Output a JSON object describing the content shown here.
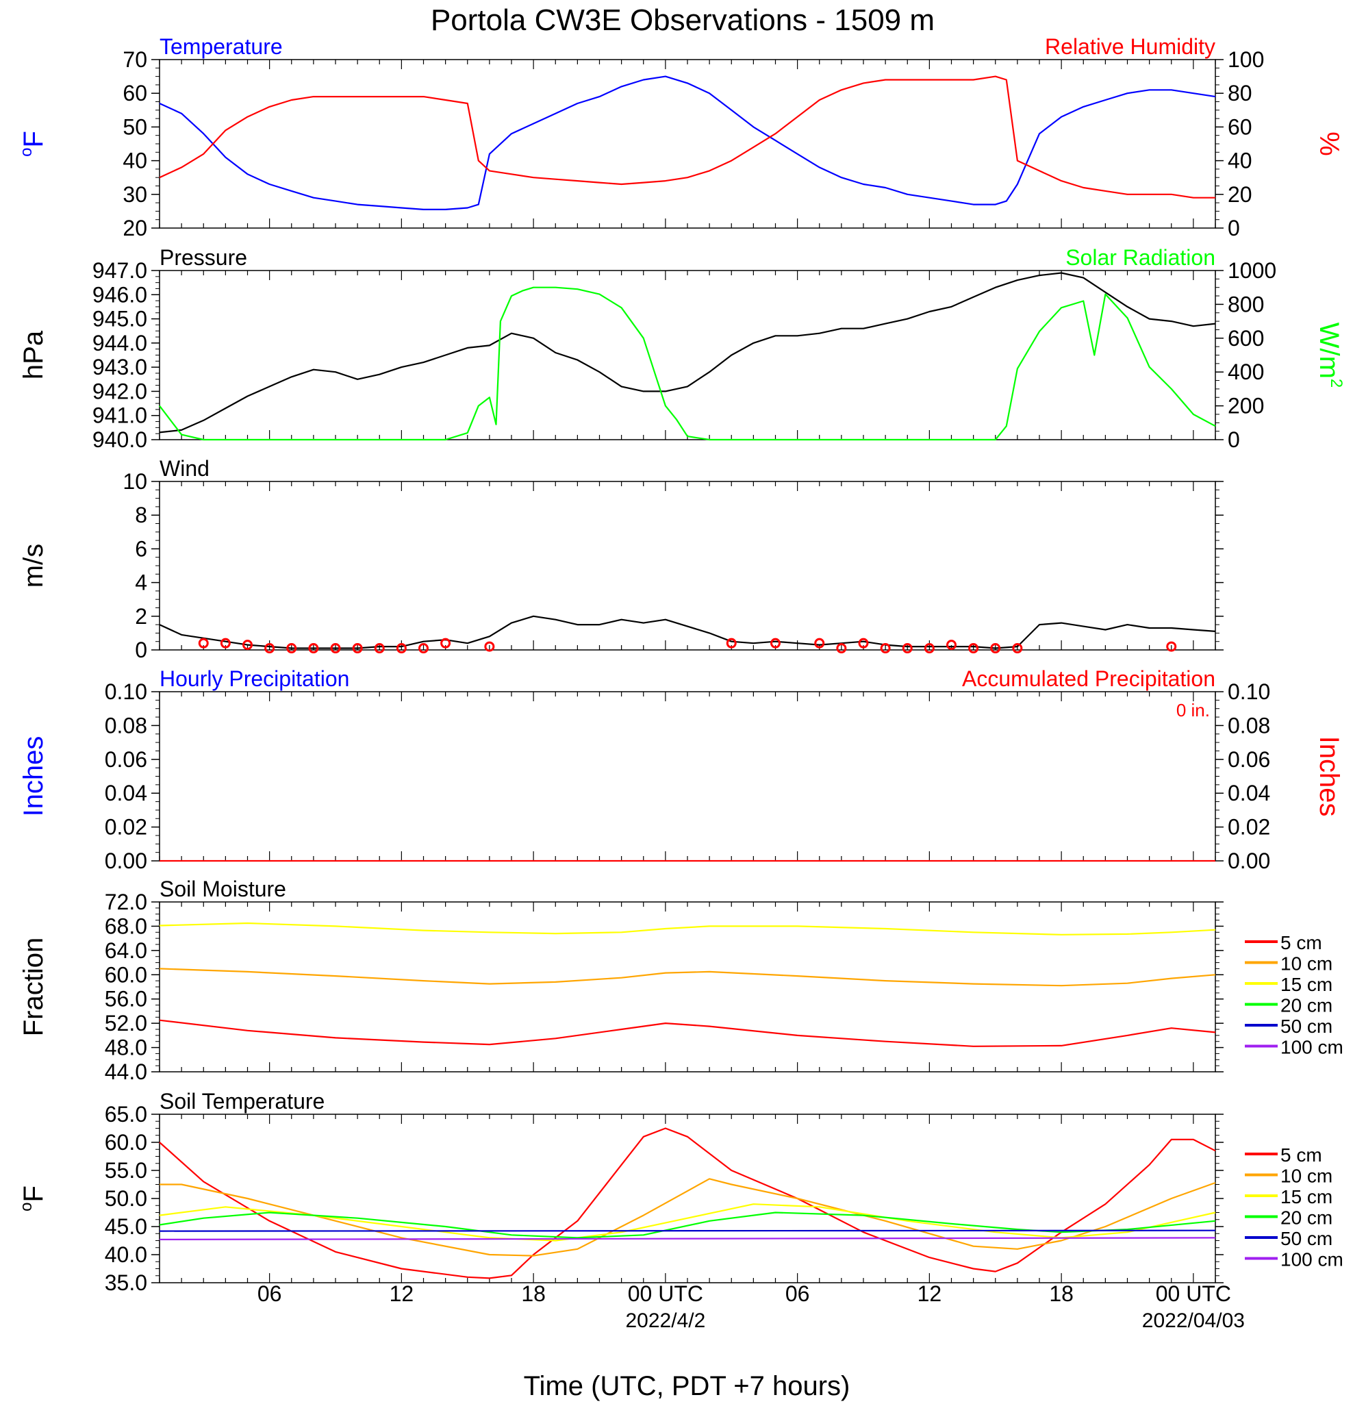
{
  "title": "Portola CW3E Observations - 1509 m",
  "x_axis": {
    "label": "Time (UTC, PDT +7 hours)",
    "ticks": [
      "06",
      "12",
      "18",
      "00 UTC",
      "06",
      "12",
      "18",
      "00 UTC"
    ],
    "tick_hours": [
      6,
      12,
      18,
      24,
      30,
      36,
      42,
      48
    ],
    "dates": [
      "2022/4/2",
      "2022/04/03"
    ],
    "date_hours": [
      24,
      48
    ],
    "range_hours": [
      1,
      49
    ]
  },
  "colors": {
    "blue": "#0000ff",
    "red": "#ff0000",
    "green": "#00ff00",
    "black": "#000000",
    "orange": "#ffa500",
    "yellow": "#ffff00",
    "navy": "#0000cc",
    "purple": "#a020f0"
  },
  "chart_data": [
    {
      "type": "line",
      "left_title": "Temperature",
      "right_title": "Relative Humidity",
      "left_ylabel": "oF",
      "right_ylabel": "%",
      "left_ylim": [
        20,
        70
      ],
      "left_ticks": [
        "70",
        "60",
        "50",
        "40",
        "30",
        "20"
      ],
      "right_ylim": [
        0,
        100
      ],
      "right_ticks": [
        "100",
        "80",
        "60",
        "40",
        "20",
        "0"
      ],
      "series": [
        {
          "name": "Temperature",
          "axis": "left",
          "color": "#0000ff",
          "x": [
            1,
            2,
            3,
            4,
            5,
            6,
            7,
            8,
            9,
            10,
            11,
            12,
            13,
            14,
            15,
            15.5,
            16,
            17,
            18,
            19,
            20,
            21,
            22,
            23,
            24,
            25,
            26,
            27,
            28,
            29,
            30,
            31,
            32,
            33,
            34,
            35,
            36,
            37,
            38,
            39,
            39.5,
            40,
            41,
            42,
            43,
            44,
            45,
            46,
            47,
            48,
            49
          ],
          "y": [
            57,
            54,
            48,
            41,
            36,
            33,
            31,
            29,
            28,
            27,
            26.5,
            26,
            25.5,
            25.5,
            26,
            27,
            42,
            48,
            51,
            54,
            57,
            59,
            62,
            64,
            65,
            63,
            60,
            55,
            50,
            46,
            42,
            38,
            35,
            33,
            32,
            30,
            29,
            28,
            27,
            27,
            28,
            33,
            48,
            53,
            56,
            58,
            60,
            61,
            61,
            60,
            59
          ]
        },
        {
          "name": "Relative Humidity",
          "axis": "right",
          "color": "#ff0000",
          "x": [
            1,
            2,
            3,
            4,
            5,
            6,
            7,
            8,
            9,
            10,
            11,
            12,
            13,
            14,
            15,
            15.5,
            16,
            17,
            18,
            19,
            20,
            21,
            22,
            23,
            24,
            25,
            26,
            27,
            28,
            29,
            30,
            31,
            32,
            33,
            34,
            35,
            36,
            37,
            38,
            39,
            39.5,
            40,
            41,
            42,
            43,
            44,
            45,
            46,
            47,
            48,
            49
          ],
          "y": [
            30,
            36,
            44,
            58,
            66,
            72,
            76,
            78,
            78,
            78,
            78,
            78,
            78,
            76,
            74,
            40,
            34,
            32,
            30,
            29,
            28,
            27,
            26,
            27,
            28,
            30,
            34,
            40,
            48,
            56,
            66,
            76,
            82,
            86,
            88,
            88,
            88,
            88,
            88,
            90,
            88,
            40,
            34,
            28,
            24,
            22,
            20,
            20,
            20,
            18,
            18
          ]
        }
      ]
    },
    {
      "type": "line",
      "left_title": "Pressure",
      "right_title": "Solar Radiation",
      "left_ylabel": "hPa",
      "right_ylabel": "W/m2",
      "left_ylim": [
        940,
        947
      ],
      "left_ticks": [
        "947.0",
        "946.0",
        "945.0",
        "944.0",
        "943.0",
        "942.0",
        "941.0",
        "940.0"
      ],
      "right_ylim": [
        0,
        1000
      ],
      "right_ticks": [
        "1000",
        "800",
        "600",
        "400",
        "200",
        "0"
      ],
      "series": [
        {
          "name": "Pressure",
          "axis": "left",
          "color": "#000000",
          "x": [
            1,
            2,
            3,
            4,
            5,
            6,
            7,
            8,
            9,
            10,
            11,
            12,
            13,
            14,
            15,
            16,
            17,
            18,
            19,
            20,
            21,
            22,
            23,
            24,
            25,
            26,
            27,
            28,
            29,
            30,
            31,
            32,
            33,
            34,
            35,
            36,
            37,
            38,
            39,
            40,
            41,
            42,
            43,
            44,
            45,
            46,
            47,
            48,
            49
          ],
          "y": [
            940.3,
            940.4,
            940.8,
            941.3,
            941.8,
            942.2,
            942.6,
            942.9,
            942.8,
            942.5,
            942.7,
            943.0,
            943.2,
            943.5,
            943.8,
            943.9,
            944.4,
            944.2,
            943.6,
            943.3,
            942.8,
            942.2,
            942.0,
            942.0,
            942.2,
            942.8,
            943.5,
            944.0,
            944.3,
            944.3,
            944.4,
            944.6,
            944.6,
            944.8,
            945.0,
            945.3,
            945.5,
            945.9,
            946.3,
            946.6,
            946.8,
            946.9,
            946.7,
            946.1,
            945.5,
            945.0,
            944.9,
            944.7,
            944.8
          ]
        },
        {
          "name": "Solar Radiation",
          "axis": "right",
          "color": "#00ff00",
          "x": [
            1,
            2,
            3,
            4,
            14,
            15,
            15.5,
            16,
            16.3,
            16.5,
            17,
            17.5,
            18,
            19,
            20,
            21,
            22,
            23,
            23.5,
            24,
            24.5,
            25,
            26,
            36,
            37,
            38,
            39,
            39.5,
            40,
            41,
            42,
            43,
            43.5,
            44,
            45,
            46,
            47,
            48,
            49
          ],
          "y": [
            200,
            30,
            0,
            0,
            0,
            40,
            200,
            250,
            90,
            700,
            850,
            880,
            900,
            900,
            890,
            860,
            780,
            600,
            400,
            200,
            120,
            20,
            0,
            0,
            0,
            0,
            0,
            80,
            420,
            640,
            780,
            820,
            500,
            860,
            720,
            430,
            300,
            150,
            80
          ]
        }
      ]
    },
    {
      "type": "line",
      "left_title": "Wind",
      "left_ylabel": "m/s",
      "left_ylim": [
        0,
        10
      ],
      "left_ticks": [
        "10",
        "8",
        "6",
        "4",
        "2",
        "0"
      ],
      "series": [
        {
          "name": "Wind",
          "axis": "left",
          "color": "#000000",
          "x": [
            1,
            2,
            3,
            4,
            5,
            6,
            7,
            8,
            9,
            10,
            11,
            12,
            13,
            14,
            15,
            16,
            17,
            18,
            19,
            20,
            21,
            22,
            23,
            24,
            25,
            26,
            27,
            28,
            29,
            30,
            31,
            32,
            33,
            34,
            35,
            36,
            37,
            38,
            39,
            40,
            41,
            42,
            43,
            44,
            45,
            46,
            47,
            48,
            49
          ],
          "y": [
            1.5,
            0.9,
            0.7,
            0.5,
            0.3,
            0.2,
            0.1,
            0.1,
            0.1,
            0.1,
            0.2,
            0.2,
            0.5,
            0.6,
            0.4,
            0.8,
            1.6,
            2.0,
            1.8,
            1.5,
            1.5,
            1.8,
            1.6,
            1.8,
            1.4,
            1.0,
            0.5,
            0.4,
            0.5,
            0.4,
            0.3,
            0.4,
            0.5,
            0.3,
            0.2,
            0.2,
            0.2,
            0.2,
            0.1,
            0.2,
            1.5,
            1.6,
            1.4,
            1.2,
            1.5,
            1.3,
            1.3,
            1.2,
            1.1
          ]
        },
        {
          "name": "Hourly wind",
          "markers": true,
          "color": "#ff0000",
          "x": [
            3,
            4,
            5,
            6,
            7,
            8,
            9,
            10,
            11,
            12,
            13,
            14,
            16,
            27,
            29,
            31,
            32,
            33,
            34,
            35,
            36,
            37,
            38,
            39,
            40,
            47
          ],
          "y": [
            0.4,
            0.4,
            0.3,
            0.1,
            0.1,
            0.1,
            0.1,
            0.1,
            0.1,
            0.1,
            0.1,
            0.4,
            0.2,
            0.4,
            0.4,
            0.4,
            0.1,
            0.4,
            0.1,
            0.1,
            0.1,
            0.3,
            0.1,
            0.1,
            0.1,
            0.2
          ]
        }
      ]
    },
    {
      "type": "line",
      "left_title": "Hourly Precipitation",
      "right_title": "Accumulated Precipitation",
      "annotation": "0 in.",
      "left_ylabel": "Inches",
      "right_ylabel": "Inches",
      "left_ylim": [
        0,
        0.1
      ],
      "left_ticks": [
        "0.10",
        "0.08",
        "0.06",
        "0.04",
        "0.02",
        "0.00"
      ],
      "right_ylim": [
        0,
        0.1
      ],
      "right_ticks": [
        "0.10",
        "0.08",
        "0.06",
        "0.04",
        "0.02",
        "0.00"
      ],
      "series": [
        {
          "name": "Accumulated Precipitation",
          "axis": "left",
          "color": "#ff0000",
          "x": [
            1,
            49
          ],
          "y": [
            0,
            0
          ]
        }
      ]
    },
    {
      "type": "line",
      "left_title": "Soil Moisture",
      "left_ylabel": "Fraction",
      "left_ylim": [
        44,
        72
      ],
      "left_ticks": [
        "72.0",
        "68.0",
        "64.0",
        "60.0",
        "56.0",
        "52.0",
        "48.0",
        "44.0"
      ],
      "legend": [
        "5 cm",
        "10 cm",
        "15 cm",
        "20 cm",
        "50 cm",
        "100 cm"
      ],
      "legend_colors": [
        "#ff0000",
        "#ffa500",
        "#ffff00",
        "#00ff00",
        "#0000cc",
        "#a020f0"
      ],
      "series": [
        {
          "name": "5 cm",
          "axis": "left",
          "color": "#ff0000",
          "x": [
            1,
            5,
            9,
            13,
            16,
            19,
            22,
            24,
            26,
            30,
            34,
            38,
            42,
            45,
            47,
            49
          ],
          "y": [
            52.5,
            50.8,
            49.6,
            48.9,
            48.5,
            49.5,
            51,
            52,
            51.5,
            50,
            49,
            48.2,
            48.3,
            50,
            51.2,
            50.5
          ]
        },
        {
          "name": "10 cm",
          "axis": "left",
          "color": "#ffa500",
          "x": [
            1,
            5,
            9,
            13,
            16,
            19,
            22,
            24,
            26,
            30,
            34,
            38,
            42,
            45,
            47,
            49
          ],
          "y": [
            61,
            60.5,
            59.8,
            59,
            58.5,
            58.8,
            59.5,
            60.3,
            60.5,
            59.8,
            59,
            58.5,
            58.2,
            58.6,
            59.4,
            60
          ]
        },
        {
          "name": "15 cm",
          "axis": "left",
          "color": "#ffff00",
          "x": [
            1,
            5,
            9,
            13,
            16,
            19,
            22,
            24,
            26,
            30,
            34,
            38,
            42,
            45,
            47,
            49
          ],
          "y": [
            68.1,
            68.5,
            68,
            67.3,
            67,
            66.8,
            67,
            67.6,
            68,
            68,
            67.6,
            67,
            66.6,
            66.7,
            67,
            67.4
          ]
        }
      ]
    },
    {
      "type": "line",
      "left_title": "Soil Temperature",
      "left_ylabel": "oF",
      "left_ylim": [
        35,
        65
      ],
      "left_ticks": [
        "65.0",
        "60.0",
        "55.0",
        "50.0",
        "45.0",
        "40.0",
        "35.0"
      ],
      "legend": [
        "5 cm",
        "10 cm",
        "15 cm",
        "20 cm",
        "50 cm",
        "100 cm"
      ],
      "legend_colors": [
        "#ff0000",
        "#ffa500",
        "#ffff00",
        "#00ff00",
        "#0000cc",
        "#a020f0"
      ],
      "series": [
        {
          "name": "5 cm",
          "axis": "left",
          "color": "#ff0000",
          "x": [
            1,
            3,
            6,
            9,
            12,
            15,
            16,
            17,
            18,
            20,
            22,
            23,
            24,
            25,
            27,
            30,
            33,
            36,
            38,
            39,
            40,
            42,
            44,
            46,
            47,
            48,
            49
          ],
          "y": [
            60,
            53,
            46,
            40.5,
            37.5,
            36,
            35.8,
            36.3,
            40,
            46,
            56,
            61,
            62.5,
            61,
            55,
            50,
            44,
            39.5,
            37.5,
            37,
            38.5,
            44,
            49,
            56,
            60.5,
            60.5,
            58.5
          ]
        },
        {
          "name": "10 cm",
          "axis": "left",
          "color": "#ffa500",
          "x": [
            1,
            2,
            5,
            8,
            12,
            16,
            18,
            20,
            23,
            26,
            27,
            30,
            34,
            38,
            40,
            42,
            44,
            47,
            49
          ],
          "y": [
            52.5,
            52.5,
            50,
            47,
            43,
            40,
            39.8,
            41,
            47,
            53.5,
            52.5,
            50,
            46,
            41.5,
            41,
            42.5,
            45,
            50,
            52.8
          ]
        },
        {
          "name": "15 cm",
          "axis": "left",
          "color": "#ffff00",
          "x": [
            1,
            4,
            8,
            12,
            16,
            19,
            22,
            25,
            28,
            31,
            35,
            39,
            42,
            45,
            49
          ],
          "y": [
            47,
            48.5,
            47,
            45,
            43,
            42.5,
            44,
            46.5,
            49,
            48.5,
            46,
            44,
            43,
            44,
            47.5
          ]
        },
        {
          "name": "20 cm",
          "axis": "left",
          "color": "#00ff00",
          "x": [
            1,
            3,
            6,
            10,
            14,
            17,
            20,
            23,
            26,
            29,
            33,
            37,
            40,
            42,
            45,
            49
          ],
          "y": [
            45.3,
            46.5,
            47.5,
            46.5,
            45,
            43.5,
            43,
            43.5,
            46,
            47.5,
            47,
            45.5,
            44.5,
            44,
            44.5,
            46
          ]
        },
        {
          "name": "50 cm",
          "axis": "left",
          "color": "#0000cc",
          "x": [
            1,
            49
          ],
          "y": [
            44.2,
            44.3
          ]
        },
        {
          "name": "100 cm",
          "axis": "left",
          "color": "#a020f0",
          "x": [
            1,
            49
          ],
          "y": [
            42.7,
            43
          ]
        }
      ]
    }
  ]
}
